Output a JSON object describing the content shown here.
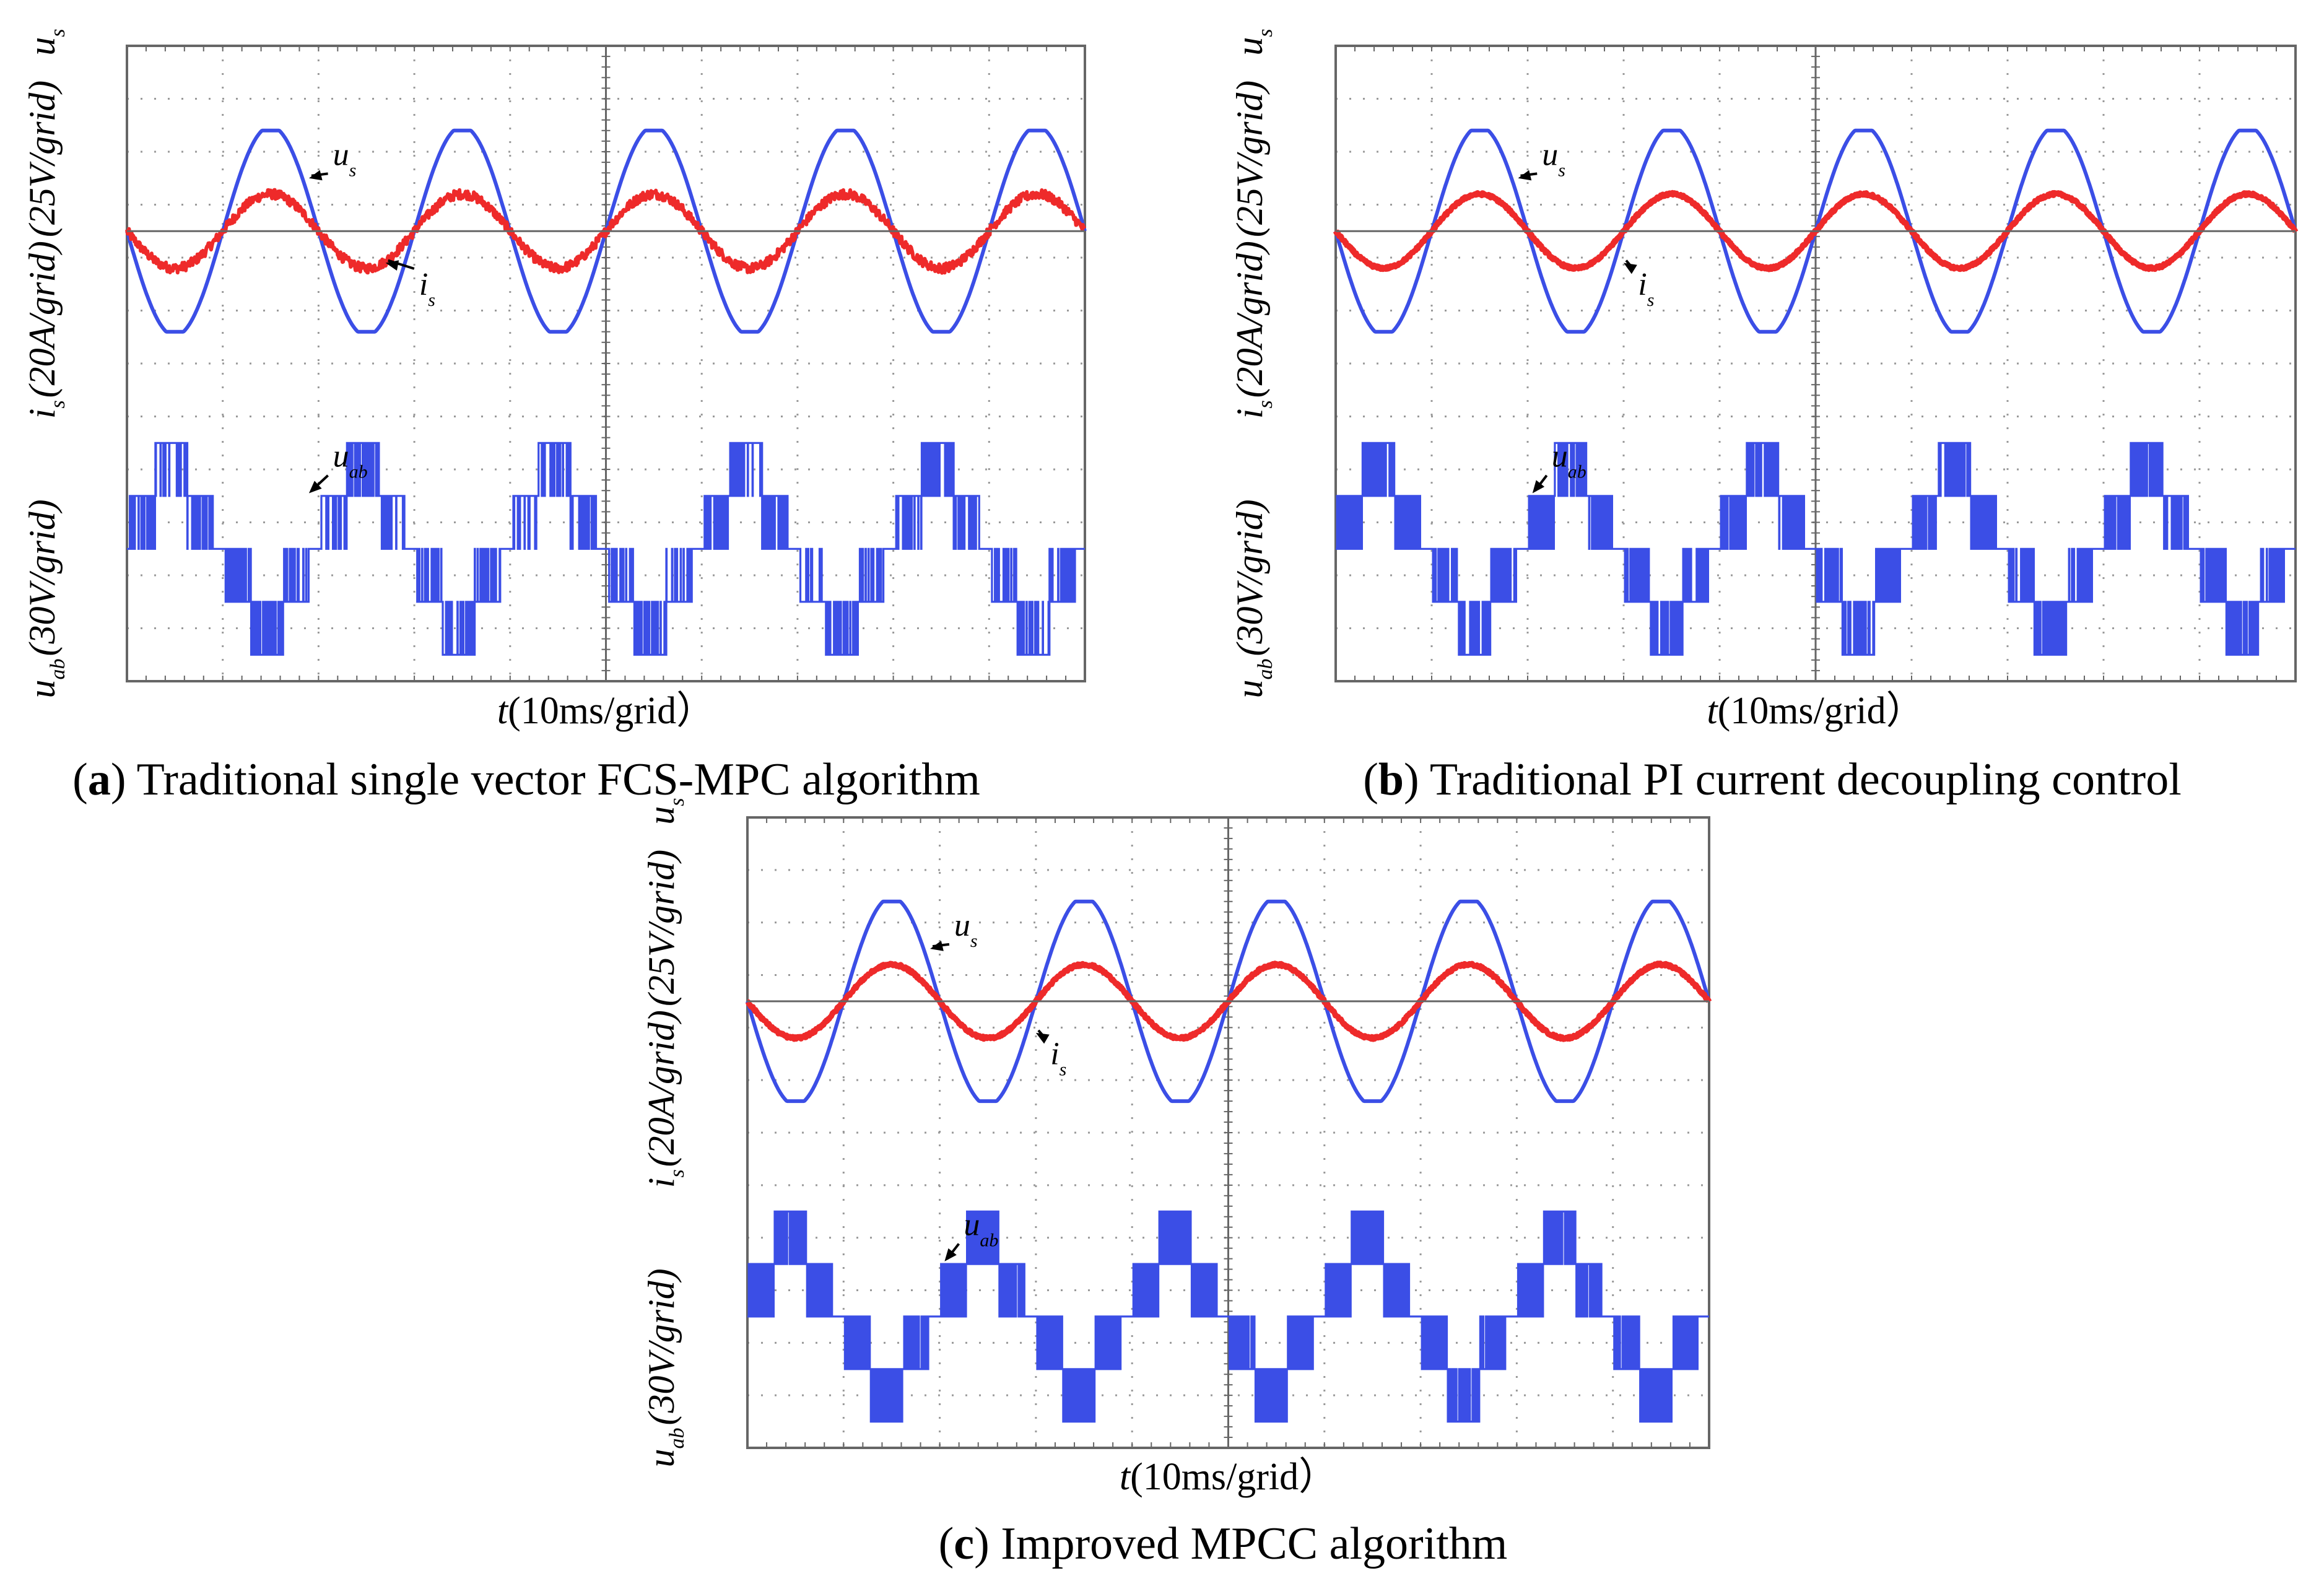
{
  "figure": {
    "description": "Experimental waveforms of grid voltage u_s, grid current i_s and converter line voltage u_ab under three control algorithms",
    "colors": {
      "voltage": "#3b4ee6",
      "current": "#ee2a2a",
      "grid": "#9a9a9a",
      "axis": "#666666"
    }
  },
  "chart_data": [
    {
      "id": "a",
      "type": "line",
      "caption_letter": "a",
      "caption_text": ") Traditional single vector FCS-MPC algorithm",
      "x_label_var": "t",
      "x_label_unit": "(10ms/grid）",
      "y_labels": {
        "us_var": "u",
        "us_sub": "s",
        "us_unit": "(25V/grid)",
        "is_var": "i",
        "is_sub": "s",
        "is_unit": "(20A/grid)",
        "uab_var": "u",
        "uab_sub": "ab",
        "uab_unit": "(30V/grid)"
      },
      "annotations": {
        "us": {
          "var": "u",
          "sub": "s"
        },
        "is": {
          "var": "i",
          "sub": "s"
        },
        "uab": {
          "var": "u",
          "sub": "ab"
        }
      },
      "x_range_ms": [
        0,
        100
      ],
      "x_divisions": 10,
      "y_divisions": 12,
      "series": [
        {
          "name": "u_s",
          "unit": "V",
          "scale_per_div": 25,
          "amplitude_div": 1.9,
          "frequency_hz": 50,
          "phase_deg": 180,
          "offset_div": 8.5
        },
        {
          "name": "i_s",
          "unit": "A",
          "scale_per_div": 20,
          "amplitude_div": 0.7,
          "frequency_hz": 50,
          "phase_deg": 180,
          "offset_div": 8.5,
          "ripple": "high"
        },
        {
          "name": "u_ab",
          "unit": "V",
          "scale_per_div": 30,
          "levels_div": [
            2,
            1,
            0,
            -1,
            -2
          ],
          "frequency_hz": 50,
          "phase_deg": 7,
          "offset_div": 2.5,
          "modulation": "single-vector"
        }
      ]
    },
    {
      "id": "b",
      "type": "line",
      "caption_letter": "b",
      "caption_text": ") Traditional PI current decoupling control",
      "x_label_var": "t",
      "x_label_unit": "(10ms/grid）",
      "y_labels": {
        "us_var": "u",
        "us_sub": "s",
        "us_unit": "(25V/grid)",
        "is_var": "i",
        "is_sub": "s",
        "is_unit": "(20A/grid)",
        "uab_var": "u",
        "uab_sub": "ab",
        "uab_unit": "(30V/grid)"
      },
      "annotations": {
        "us": {
          "var": "u",
          "sub": "s"
        },
        "is": {
          "var": "i",
          "sub": "s"
        },
        "uab": {
          "var": "u",
          "sub": "ab"
        }
      },
      "x_range_ms": [
        0,
        100
      ],
      "x_divisions": 10,
      "y_divisions": 12,
      "series": [
        {
          "name": "u_s",
          "unit": "V",
          "scale_per_div": 25,
          "amplitude_div": 1.9,
          "frequency_hz": 50,
          "phase_deg": 180,
          "offset_div": 8.5
        },
        {
          "name": "i_s",
          "unit": "A",
          "scale_per_div": 20,
          "amplitude_div": 0.7,
          "frequency_hz": 50,
          "phase_deg": 180,
          "offset_div": 8.5,
          "ripple": "low"
        },
        {
          "name": "u_ab",
          "unit": "V",
          "scale_per_div": 30,
          "levels_div": [
            2,
            1,
            0,
            -1,
            -2
          ],
          "frequency_hz": 50,
          "phase_deg": 10,
          "offset_div": 2.5,
          "modulation": "PWM"
        }
      ]
    },
    {
      "id": "c",
      "type": "line",
      "caption_letter": "c",
      "caption_text": ") Improved MPCC algorithm",
      "x_label_var": "t",
      "x_label_unit": "(10ms/grid）",
      "y_labels": {
        "us_var": "u",
        "us_sub": "s",
        "us_unit": "(25V/grid)",
        "is_var": "i",
        "is_sub": "s",
        "is_unit": "(20A/grid)",
        "uab_var": "u",
        "uab_sub": "ab",
        "uab_unit": "(30V/grid)"
      },
      "annotations": {
        "us": {
          "var": "u",
          "sub": "s"
        },
        "is": {
          "var": "i",
          "sub": "s"
        },
        "uab": {
          "var": "u",
          "sub": "ab"
        }
      },
      "x_range_ms": [
        0,
        100
      ],
      "x_divisions": 10,
      "y_divisions": 12,
      "series": [
        {
          "name": "u_s",
          "unit": "V",
          "scale_per_div": 25,
          "amplitude_div": 1.9,
          "frequency_hz": 50,
          "phase_deg": 180,
          "offset_div": 8.5
        },
        {
          "name": "i_s",
          "unit": "A",
          "scale_per_div": 20,
          "amplitude_div": 0.7,
          "frequency_hz": 50,
          "phase_deg": 180,
          "offset_div": 8.5,
          "ripple": "low"
        },
        {
          "name": "u_ab",
          "unit": "V",
          "scale_per_div": 30,
          "levels_div": [
            2,
            1,
            0,
            -1,
            -2
          ],
          "frequency_hz": 50,
          "phase_deg": 10,
          "offset_div": 2.5,
          "modulation": "PWM-dense"
        }
      ]
    }
  ]
}
